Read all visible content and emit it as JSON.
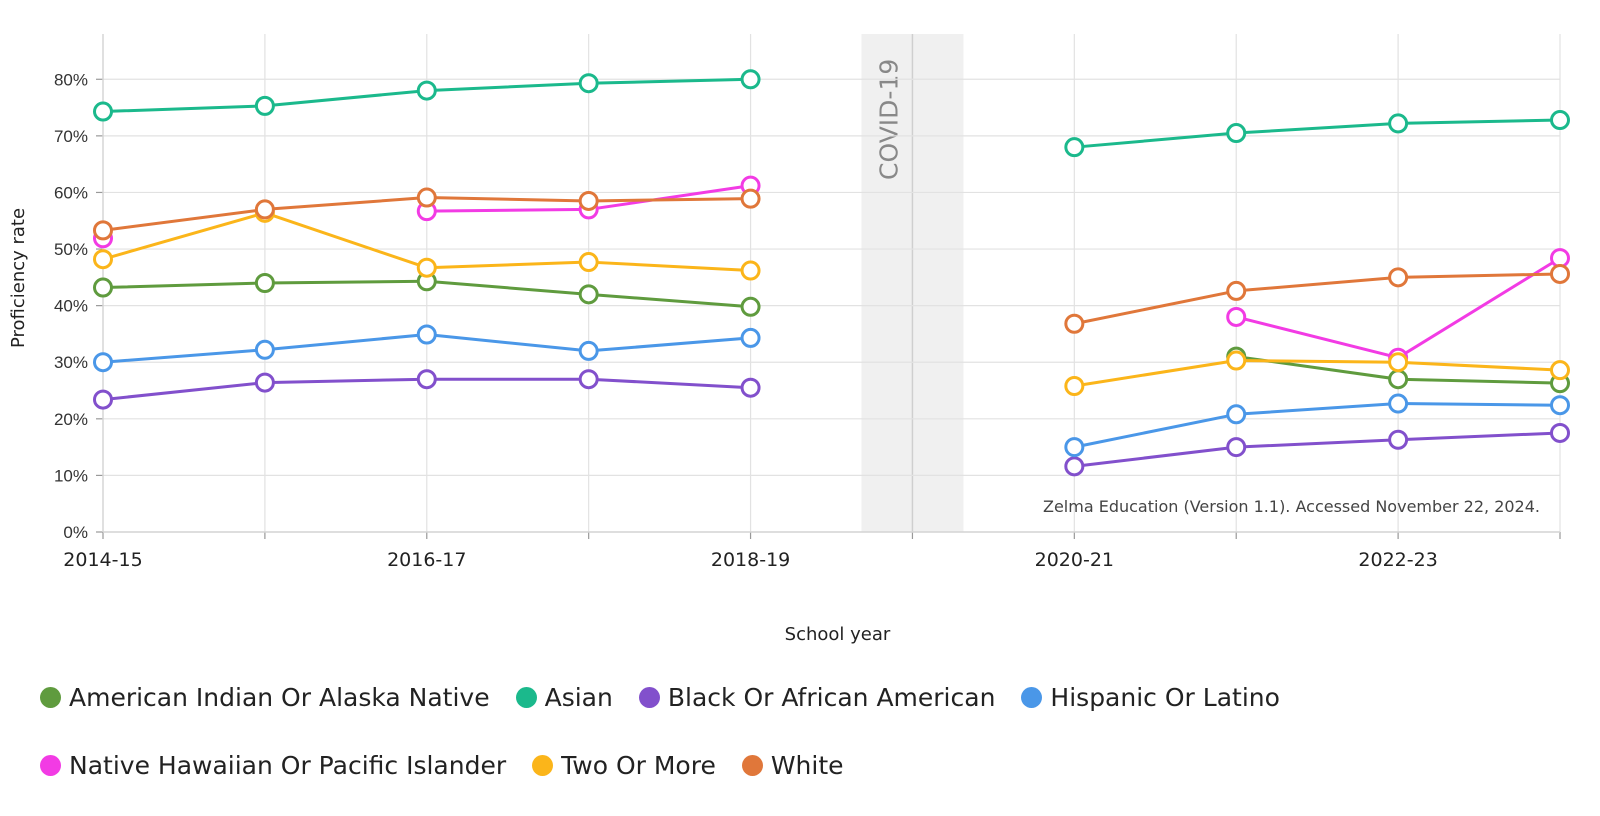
{
  "chart_data": {
    "type": "line",
    "title": "",
    "xlabel": "School year",
    "ylabel": "Proficiency rate",
    "x": [
      "2014-15",
      "2015-16",
      "2016-17",
      "2017-18",
      "2018-19",
      "2019-20",
      "2020-21",
      "2021-22",
      "2022-23",
      "2023-24"
    ],
    "x_tick_labels": [
      "2014-15",
      "",
      "2016-17",
      "",
      "2018-19",
      "",
      "2020-21",
      "",
      "2022-23",
      ""
    ],
    "y_ticks": [
      "0%",
      "10%",
      "20%",
      "30%",
      "40%",
      "50%",
      "60%",
      "70%",
      "80%"
    ],
    "ylim": [
      0,
      88
    ],
    "grid": true,
    "legend": "bottom",
    "covid_band": {
      "x": "2019-20",
      "label": "COVID-19"
    },
    "source_note": "Zelma Education (Version 1.1). Accessed November 22, 2024.",
    "series": [
      {
        "name": "American Indian Or Alaska Native",
        "color": "#5f9b3e",
        "values": [
          43.2,
          44.0,
          44.3,
          42.0,
          39.8,
          null,
          null,
          31.0,
          27.0,
          26.3
        ]
      },
      {
        "name": "Asian",
        "color": "#1bb98c",
        "values": [
          74.3,
          75.3,
          78.0,
          79.3,
          80.0,
          null,
          68.0,
          70.5,
          72.2,
          72.8
        ]
      },
      {
        "name": "Black Or African American",
        "color": "#8250cc",
        "values": [
          23.4,
          26.4,
          27.0,
          27.0,
          25.5,
          null,
          11.6,
          15.0,
          16.3,
          17.5
        ]
      },
      {
        "name": "Hispanic Or Latino",
        "color": "#4a97e8",
        "values": [
          30.0,
          32.2,
          34.9,
          32.0,
          34.3,
          null,
          15.0,
          20.8,
          22.7,
          22.4
        ]
      },
      {
        "name": "Native Hawaiian Or Pacific Islander",
        "color": "#f23be4",
        "values": [
          51.9,
          null,
          56.7,
          57.0,
          61.2,
          null,
          null,
          38.0,
          30.8,
          48.4
        ]
      },
      {
        "name": "Two Or More",
        "color": "#fbb51a",
        "values": [
          48.2,
          56.4,
          46.7,
          47.7,
          46.2,
          null,
          25.8,
          30.3,
          30.0,
          28.6
        ]
      },
      {
        "name": "White",
        "color": "#e0773a",
        "values": [
          53.3,
          57.0,
          59.1,
          58.5,
          58.9,
          null,
          36.8,
          42.6,
          45.0,
          45.6
        ]
      }
    ]
  }
}
